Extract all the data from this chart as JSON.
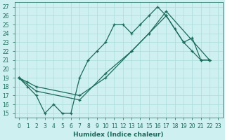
{
  "xlabel": "Humidex (Indice chaleur)",
  "bg_color": "#cff0f0",
  "grid_color": "#aadddd",
  "line_color": "#1a6b5a",
  "xlim": [
    -0.5,
    23.5
  ],
  "ylim": [
    14.5,
    27.5
  ],
  "xticks": [
    0,
    1,
    2,
    3,
    4,
    5,
    6,
    7,
    8,
    9,
    10,
    11,
    12,
    13,
    14,
    15,
    16,
    17,
    18,
    19,
    20,
    21,
    22,
    23
  ],
  "yticks": [
    15,
    16,
    17,
    18,
    19,
    20,
    21,
    22,
    23,
    24,
    25,
    26,
    27
  ],
  "line1_x": [
    0,
    1,
    2,
    3,
    4,
    5,
    6,
    7,
    8,
    9,
    10,
    11,
    12,
    13,
    14,
    15,
    16,
    17,
    18,
    19,
    20,
    21,
    22
  ],
  "line1_y": [
    19,
    18,
    17,
    15,
    16,
    15,
    15,
    19,
    21,
    22,
    23,
    25,
    25,
    24,
    25,
    26,
    27,
    26,
    24.5,
    23,
    22,
    21,
    21
  ],
  "line2_x": [
    0,
    1,
    2,
    7,
    10,
    13,
    15,
    17,
    19,
    20,
    21,
    22
  ],
  "line2_y": [
    19,
    18.5,
    18,
    17,
    19,
    22,
    24,
    26,
    23,
    23.5,
    21,
    21
  ],
  "line3_x": [
    0,
    2,
    7,
    10,
    13,
    15,
    17,
    22
  ],
  "line3_y": [
    19,
    17.5,
    16.5,
    19.5,
    22,
    24,
    26.5,
    21
  ]
}
